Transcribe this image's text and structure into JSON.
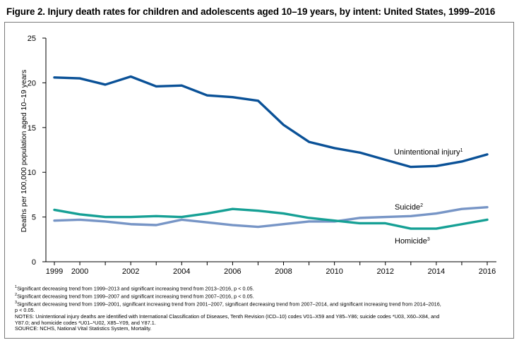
{
  "title": "Figure 2. Injury death rates for children and adolescents aged 10–19 years, by intent: United States, 1999–2016",
  "chart_data": {
    "type": "line",
    "ylabel": "Deaths per 100,000 population aged 10–19 years",
    "xlabel": "",
    "ylim": [
      0,
      25
    ],
    "xlim": [
      1999,
      2016
    ],
    "yticks": [
      0,
      5,
      10,
      15,
      20,
      25
    ],
    "xticks": [
      1999,
      2000,
      2002,
      2004,
      2006,
      2008,
      2010,
      2012,
      2014,
      2016
    ],
    "grid": false,
    "x": [
      1999,
      2000,
      2001,
      2002,
      2003,
      2004,
      2005,
      2006,
      2007,
      2008,
      2009,
      2010,
      2011,
      2012,
      2013,
      2014,
      2015,
      2016
    ],
    "series": [
      {
        "name": "Unintentional injury",
        "sup": "1",
        "color": "#0a5197",
        "values": [
          20.6,
          20.5,
          19.8,
          20.7,
          19.6,
          19.7,
          18.6,
          18.4,
          18.0,
          15.3,
          13.4,
          12.7,
          12.2,
          11.4,
          10.6,
          10.7,
          11.2,
          12.0
        ]
      },
      {
        "name": "Suicide",
        "sup": "2",
        "color": "#7795c6",
        "values": [
          4.6,
          4.7,
          4.5,
          4.2,
          4.1,
          4.7,
          4.4,
          4.1,
          3.9,
          4.2,
          4.5,
          4.5,
          4.9,
          5.0,
          5.1,
          5.4,
          5.9,
          6.1
        ]
      },
      {
        "name": "Homicide",
        "sup": "3",
        "color": "#16a095",
        "values": [
          5.8,
          5.3,
          5.0,
          5.0,
          5.1,
          5.0,
          5.4,
          5.9,
          5.7,
          5.4,
          4.9,
          4.6,
          4.3,
          4.3,
          3.7,
          3.7,
          4.2,
          4.7
        ]
      }
    ]
  },
  "notes": [
    {
      "sup": "1",
      "text": "Significant decreasing trend from 1999–2013 and significant increasing trend from 2013–2016, p < 0.05."
    },
    {
      "sup": "2",
      "text": "Significant decreasing trend from 1999–2007 and significant increasing trend from 2007–2016, p < 0.05."
    },
    {
      "sup": "3",
      "text": "Significant decreasing trend from 1999–2001, significant increasing trend from 2001–2007, significant decreasing trend from 2007–2014, and significant increasing trend from 2014–2016,"
    },
    {
      "sup": "",
      "text": "p < 0.05."
    },
    {
      "sup": "",
      "text": "NOTES: Unintentional injury deaths are identified with International Classification of Diseases, Tenth Revision (ICD–10) codes V01–X59 and Y85–Y86; suicide codes *U03, X60–X84, and"
    },
    {
      "sup": "",
      "text": "Y87.0; and homicide codes *U01–*U02, X85–Y09, and Y87.1."
    },
    {
      "sup": "",
      "text": "SOURCE: NCHS, National Vital Statistics System, Mortality."
    }
  ]
}
